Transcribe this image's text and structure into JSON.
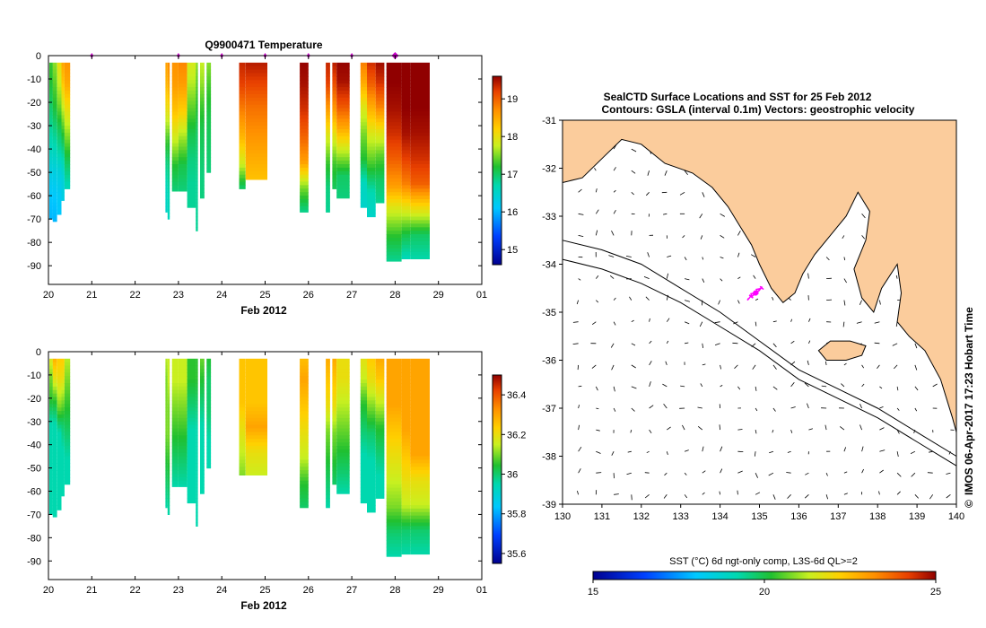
{
  "chart_data": [
    {
      "type": "heatmap",
      "id": "temperature",
      "title": "Q9900471  Temperature",
      "xlabel": "Feb 2012",
      "x_ticks": [
        "20",
        "21",
        "22",
        "23",
        "24",
        "25",
        "26",
        "27",
        "28",
        "29",
        "01"
      ],
      "x_range": [
        20,
        30
      ],
      "ylim": [
        -98,
        0
      ],
      "y_ticks": [
        "0",
        "-10",
        "-20",
        "-30",
        "-40",
        "-50",
        "-60",
        "-70",
        "-80",
        "-90"
      ],
      "colorbar_ticks": [
        "19",
        "18",
        "17",
        "16",
        "15"
      ],
      "colorbar_range": [
        14.6,
        19.6
      ],
      "profile_markers": [
        21.0,
        23.0,
        24.0,
        25.0,
        26.0,
        27.0,
        28.0
      ],
      "profiles": [
        {
          "t0": 20.02,
          "t1": 20.1,
          "bottom": 70,
          "v": [
            17.3,
            17.2,
            17.0,
            16.8,
            16.6,
            16.3,
            16.1,
            16.0
          ]
        },
        {
          "t0": 20.1,
          "t1": 20.2,
          "bottom": 71,
          "v": [
            17.6,
            17.4,
            17.2,
            16.9,
            16.6,
            16.3,
            16.1,
            16.0
          ]
        },
        {
          "t0": 20.2,
          "t1": 20.3,
          "bottom": 68,
          "v": [
            18.1,
            17.8,
            17.5,
            17.1,
            16.8,
            16.4,
            16.2,
            16.1
          ]
        },
        {
          "t0": 20.3,
          "t1": 20.37,
          "bottom": 62,
          "v": [
            18.6,
            18.3,
            17.8,
            17.3,
            16.8,
            16.4,
            16.3
          ]
        },
        {
          "t0": 20.37,
          "t1": 20.5,
          "bottom": 57,
          "v": [
            18.7,
            18.5,
            18.0,
            17.5,
            17.0,
            16.6
          ]
        },
        {
          "t0": 22.7,
          "t1": 22.75,
          "bottom": 67,
          "v": [
            18.6,
            18.4,
            18.0,
            17.4,
            16.9,
            16.6,
            16.5
          ]
        },
        {
          "t0": 22.75,
          "t1": 22.8,
          "bottom": 70,
          "v": [
            18.8,
            18.5,
            18.0,
            17.3,
            16.9,
            16.7,
            16.6
          ]
        },
        {
          "t0": 22.85,
          "t1": 23.0,
          "bottom": 58,
          "v": [
            18.7,
            18.6,
            18.3,
            17.8,
            17.2,
            16.9
          ]
        },
        {
          "t0": 23.0,
          "t1": 23.2,
          "bottom": 58,
          "v": [
            18.8,
            18.6,
            18.2,
            17.6,
            17.1,
            16.9
          ]
        },
        {
          "t0": 23.2,
          "t1": 23.4,
          "bottom": 65,
          "v": [
            17.9,
            17.7,
            17.4,
            17.1,
            16.9,
            16.8,
            16.8
          ]
        },
        {
          "t0": 23.4,
          "t1": 23.45,
          "bottom": 75,
          "v": [
            17.6,
            17.4,
            17.2,
            17.0,
            16.9,
            16.8,
            16.8,
            16.8
          ]
        },
        {
          "t0": 23.5,
          "t1": 23.6,
          "bottom": 61,
          "v": [
            17.8,
            17.6,
            17.3,
            17.1,
            17.0,
            16.9,
            16.9
          ]
        },
        {
          "t0": 23.65,
          "t1": 23.75,
          "bottom": 50,
          "v": [
            17.6,
            17.3,
            17.1,
            17.0,
            16.9
          ]
        },
        {
          "t0": 24.4,
          "t1": 24.55,
          "bottom": 57,
          "v": [
            19.4,
            19.2,
            18.8,
            18.4,
            17.8,
            16.9
          ]
        },
        {
          "t0": 24.55,
          "t1": 25.05,
          "bottom": 53,
          "v": [
            19.5,
            19.2,
            18.9,
            18.7,
            18.5,
            18.3
          ]
        },
        {
          "t0": 25.8,
          "t1": 26.0,
          "bottom": 67,
          "v": [
            19.6,
            19.5,
            19.3,
            19.0,
            18.6,
            17.5,
            16.8
          ]
        },
        {
          "t0": 26.4,
          "t1": 26.5,
          "bottom": 67,
          "v": [
            19.4,
            19.2,
            18.6,
            17.9,
            17.3,
            16.9,
            16.8
          ]
        },
        {
          "t0": 26.55,
          "t1": 26.65,
          "bottom": 57,
          "v": [
            19.5,
            19.1,
            18.6,
            17.9,
            17.3,
            17.0
          ]
        },
        {
          "t0": 26.65,
          "t1": 26.95,
          "bottom": 61,
          "v": [
            19.6,
            19.5,
            19.1,
            18.5,
            17.7,
            17.0,
            16.9
          ]
        },
        {
          "t0": 27.2,
          "t1": 27.35,
          "bottom": 65,
          "v": [
            18.9,
            18.5,
            17.9,
            17.5,
            17.2,
            16.6,
            16.5
          ]
        },
        {
          "t0": 27.35,
          "t1": 27.55,
          "bottom": 69,
          "v": [
            19.4,
            19.0,
            18.4,
            17.8,
            17.3,
            16.7,
            16.5
          ]
        },
        {
          "t0": 27.55,
          "t1": 27.75,
          "bottom": 63,
          "v": [
            19.6,
            19.3,
            18.8,
            18.0,
            17.4,
            17.0,
            16.8
          ]
        },
        {
          "t0": 27.8,
          "t1": 28.15,
          "bottom": 88,
          "v": [
            19.6,
            19.6,
            19.5,
            19.3,
            19.0,
            18.6,
            17.8,
            17.2,
            16.8
          ]
        },
        {
          "t0": 28.15,
          "t1": 28.35,
          "bottom": 87,
          "v": [
            19.6,
            19.6,
            19.6,
            19.5,
            19.2,
            18.8,
            17.9,
            17.1,
            16.6
          ]
        },
        {
          "t0": 28.35,
          "t1": 28.8,
          "bottom": 87,
          "v": [
            19.6,
            19.6,
            19.6,
            19.5,
            19.3,
            19.0,
            18.0,
            17.0,
            16.7
          ]
        }
      ]
    },
    {
      "type": "heatmap",
      "id": "salinity",
      "title": "",
      "xlabel": "Feb 2012",
      "x_ticks": [
        "20",
        "21",
        "22",
        "23",
        "24",
        "25",
        "26",
        "27",
        "28",
        "29",
        "01"
      ],
      "x_range": [
        20,
        30
      ],
      "ylim": [
        -98,
        0
      ],
      "y_ticks": [
        "0",
        "-10",
        "-20",
        "-30",
        "-40",
        "-50",
        "-60",
        "-70",
        "-80",
        "-90"
      ],
      "colorbar_ticks": [
        "36.4",
        "36.2",
        "36",
        "35.8",
        "35.6"
      ],
      "colorbar_range": [
        35.55,
        36.5
      ],
      "profiles": [
        {
          "t0": 20.02,
          "t1": 20.1,
          "bottom": 70,
          "v": [
            36.2,
            36.1,
            36.05,
            35.95,
            35.95,
            35.95,
            35.95,
            35.95
          ]
        },
        {
          "t0": 20.1,
          "t1": 20.2,
          "bottom": 71,
          "v": [
            36.3,
            36.2,
            36.05,
            35.95,
            35.95,
            35.95,
            35.95,
            35.95
          ]
        },
        {
          "t0": 20.2,
          "t1": 20.3,
          "bottom": 68,
          "v": [
            36.25,
            36.2,
            36.1,
            35.95,
            35.95,
            35.95,
            35.95
          ]
        },
        {
          "t0": 20.3,
          "t1": 20.37,
          "bottom": 62,
          "v": [
            36.25,
            36.2,
            36.1,
            36.0,
            35.95,
            35.95,
            35.95
          ]
        },
        {
          "t0": 20.37,
          "t1": 20.5,
          "bottom": 57,
          "v": [
            36.15,
            36.1,
            36.05,
            36.0,
            35.95,
            35.95
          ]
        },
        {
          "t0": 22.7,
          "t1": 22.75,
          "bottom": 67,
          "v": [
            36.15,
            36.1,
            36.1,
            36.1,
            36.05,
            36.0,
            35.95
          ]
        },
        {
          "t0": 22.75,
          "t1": 22.8,
          "bottom": 70,
          "v": [
            36.15,
            36.15,
            36.1,
            36.1,
            36.05,
            36.0,
            35.95
          ]
        },
        {
          "t0": 22.85,
          "t1": 23.0,
          "bottom": 58,
          "v": [
            36.15,
            36.15,
            36.1,
            36.05,
            36.0,
            35.95
          ]
        },
        {
          "t0": 23.0,
          "t1": 23.2,
          "bottom": 58,
          "v": [
            36.15,
            36.15,
            36.1,
            36.05,
            36.0,
            35.95
          ]
        },
        {
          "t0": 23.2,
          "t1": 23.4,
          "bottom": 65,
          "v": [
            36.05,
            36.05,
            36.0,
            35.95,
            35.95,
            35.95,
            35.95
          ]
        },
        {
          "t0": 23.4,
          "t1": 23.45,
          "bottom": 75,
          "v": [
            36.05,
            36.05,
            36.0,
            35.95,
            35.95,
            35.95,
            35.95,
            35.95
          ]
        },
        {
          "t0": 23.5,
          "t1": 23.6,
          "bottom": 61,
          "v": [
            36.1,
            36.05,
            36.0,
            35.95,
            35.95,
            35.95,
            35.95
          ]
        },
        {
          "t0": 23.65,
          "t1": 23.75,
          "bottom": 50,
          "v": [
            36.05,
            36.0,
            36.0,
            35.95,
            35.95
          ]
        },
        {
          "t0": 24.4,
          "t1": 24.55,
          "bottom": 53,
          "v": [
            36.25,
            36.25,
            36.25,
            36.2,
            36.15,
            36.1
          ]
        },
        {
          "t0": 24.55,
          "t1": 25.05,
          "bottom": 53,
          "v": [
            36.25,
            36.25,
            36.25,
            36.3,
            36.2,
            36.15
          ]
        },
        {
          "t0": 25.8,
          "t1": 26.0,
          "bottom": 67,
          "v": [
            36.25,
            36.3,
            36.25,
            36.2,
            36.15,
            36.05,
            36.0
          ]
        },
        {
          "t0": 26.4,
          "t1": 26.5,
          "bottom": 67,
          "v": [
            36.3,
            36.25,
            36.2,
            36.1,
            36.05,
            36.0,
            35.95
          ]
        },
        {
          "t0": 26.55,
          "t1": 26.65,
          "bottom": 57,
          "v": [
            36.3,
            36.25,
            36.2,
            36.1,
            36.05,
            36.0
          ]
        },
        {
          "t0": 26.65,
          "t1": 26.95,
          "bottom": 61,
          "v": [
            36.2,
            36.2,
            36.15,
            36.1,
            36.05,
            36.0,
            35.95
          ]
        },
        {
          "t0": 27.2,
          "t1": 27.35,
          "bottom": 65,
          "v": [
            36.2,
            36.15,
            36.05,
            36.0,
            35.95,
            35.95,
            35.95
          ]
        },
        {
          "t0": 27.35,
          "t1": 27.55,
          "bottom": 69,
          "v": [
            36.25,
            36.2,
            36.1,
            36.0,
            35.95,
            35.95,
            35.95
          ]
        },
        {
          "t0": 27.55,
          "t1": 27.75,
          "bottom": 63,
          "v": [
            36.3,
            36.25,
            36.15,
            36.05,
            36.0,
            35.95,
            35.95
          ]
        },
        {
          "t0": 27.8,
          "t1": 28.15,
          "bottom": 88,
          "v": [
            36.3,
            36.3,
            36.3,
            36.25,
            36.2,
            36.15,
            36.1,
            36.0,
            35.95
          ]
        },
        {
          "t0": 28.15,
          "t1": 28.35,
          "bottom": 87,
          "v": [
            36.3,
            36.3,
            36.3,
            36.3,
            36.25,
            36.2,
            36.15,
            36.0,
            35.95
          ]
        },
        {
          "t0": 28.35,
          "t1": 28.8,
          "bottom": 87,
          "v": [
            36.3,
            36.3,
            36.3,
            36.3,
            36.3,
            36.2,
            36.15,
            36.0,
            35.95
          ]
        }
      ]
    },
    {
      "type": "map",
      "id": "sst-map",
      "title": "SealCTD Surface Locations and SST for 25 Feb 2012",
      "subtitle": "Contours: GSLA (interval 0.1m) Vectors: geostrophic velocity",
      "x_ticks": [
        "130",
        "131",
        "132",
        "133",
        "134",
        "135",
        "136",
        "137",
        "138",
        "139",
        "140"
      ],
      "x_range": [
        130,
        140
      ],
      "y_ticks": [
        "-31",
        "-32",
        "-33",
        "-34",
        "-35",
        "-36",
        "-37",
        "-38",
        "-39"
      ],
      "y_range": [
        -39,
        -31
      ],
      "land_color": "#fbcc9c",
      "ocean_color": "#ffffff",
      "track_color": "#ff00ff",
      "track_center": [
        134.9,
        -34.6
      ],
      "land_outline": [
        [
          130,
          -32.3
        ],
        [
          130.5,
          -32.2
        ],
        [
          131,
          -31.8
        ],
        [
          131.5,
          -31.4
        ],
        [
          132,
          -31.5
        ],
        [
          132.6,
          -31.9
        ],
        [
          133.3,
          -32.1
        ],
        [
          133.8,
          -32.4
        ],
        [
          134.2,
          -32.8
        ],
        [
          134.5,
          -33.2
        ],
        [
          134.8,
          -33.6
        ],
        [
          135.0,
          -34.0
        ],
        [
          135.3,
          -34.5
        ],
        [
          135.6,
          -34.8
        ],
        [
          135.9,
          -34.6
        ],
        [
          136.1,
          -34.2
        ],
        [
          136.4,
          -33.8
        ],
        [
          136.8,
          -33.4
        ],
        [
          137.2,
          -33.0
        ],
        [
          137.5,
          -32.5
        ],
        [
          137.8,
          -32.9
        ],
        [
          137.7,
          -33.5
        ],
        [
          137.4,
          -34.1
        ],
        [
          137.6,
          -34.7
        ],
        [
          137.9,
          -35.0
        ],
        [
          138.1,
          -34.5
        ],
        [
          138.5,
          -34.0
        ],
        [
          138.6,
          -34.6
        ],
        [
          138.5,
          -35.2
        ],
        [
          138.8,
          -35.5
        ],
        [
          139.2,
          -35.8
        ],
        [
          139.6,
          -36.4
        ],
        [
          139.9,
          -37.2
        ],
        [
          140,
          -37.5
        ],
        [
          140,
          -31
        ],
        [
          130,
          -31
        ]
      ],
      "island_outline": [
        [
          136.5,
          -35.8
        ],
        [
          136.8,
          -35.6
        ],
        [
          137.3,
          -35.6
        ],
        [
          137.7,
          -35.7
        ],
        [
          137.6,
          -35.9
        ],
        [
          137.2,
          -36.0
        ],
        [
          136.7,
          -36.0
        ]
      ],
      "gsla_contours": [
        [
          [
            130,
            -33.5
          ],
          [
            131,
            -33.7
          ],
          [
            132,
            -34.0
          ],
          [
            133,
            -34.5
          ],
          [
            134,
            -35.0
          ],
          [
            135,
            -35.6
          ],
          [
            136,
            -36.2
          ],
          [
            137,
            -36.6
          ],
          [
            138,
            -37.0
          ],
          [
            139,
            -37.5
          ],
          [
            140,
            -38.0
          ]
        ],
        [
          [
            130,
            -33.9
          ],
          [
            131,
            -34.1
          ],
          [
            132,
            -34.4
          ],
          [
            133,
            -34.8
          ],
          [
            134,
            -35.3
          ],
          [
            135,
            -35.8
          ],
          [
            136,
            -36.4
          ],
          [
            137,
            -36.8
          ],
          [
            138,
            -37.2
          ],
          [
            139,
            -37.7
          ],
          [
            140,
            -38.2
          ]
        ]
      ],
      "colorbar_title": "SST (°C) 6d ngt-only comp, L3S-6d QL>=2",
      "colorbar_ticks": [
        "15",
        "20",
        "25"
      ],
      "colorbar_range": [
        15,
        25
      ],
      "side_label": "IMOS 06-Apr-2017 17:23 Hobart Time",
      "side_mark": "©"
    }
  ]
}
